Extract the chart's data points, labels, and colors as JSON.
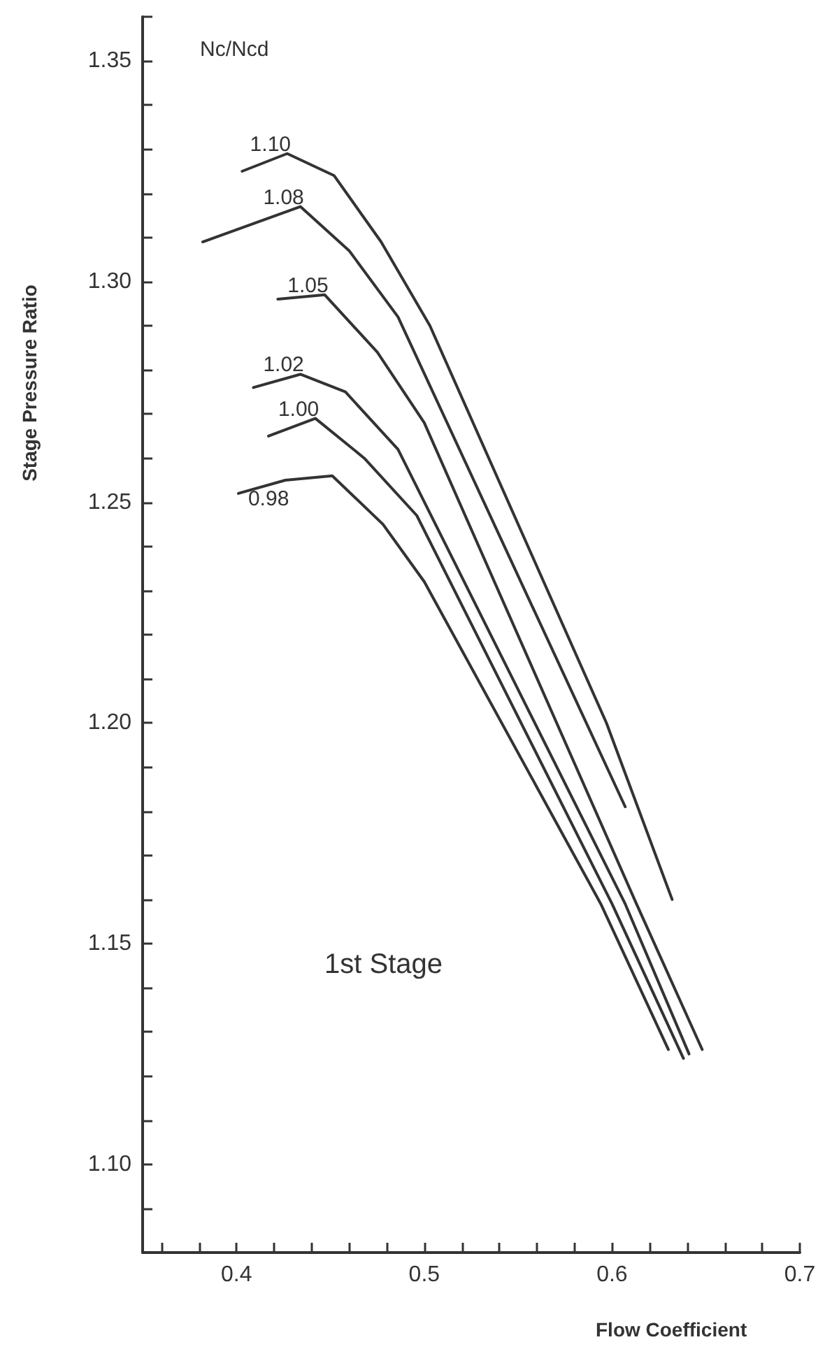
{
  "chart_data": {
    "type": "line",
    "xlabel": "Flow Coefficient",
    "ylabel": "Stage Pressure Ratio",
    "legend_title": "Nc/Ncd",
    "annotations": [
      "1st Stage"
    ],
    "xlim": [
      0.35,
      0.7
    ],
    "ylim": [
      1.08,
      1.36
    ],
    "xticks": [
      {
        "value": 0.36,
        "label": null
      },
      {
        "value": 0.38,
        "label": null
      },
      0.4,
      {
        "value": 0.42,
        "label": null
      },
      {
        "value": 0.44,
        "label": null
      },
      {
        "value": 0.46,
        "label": null
      },
      {
        "value": 0.48,
        "label": null
      },
      0.5,
      {
        "value": 0.52,
        "label": null
      },
      {
        "value": 0.54,
        "label": null
      },
      {
        "value": 0.56,
        "label": null
      },
      {
        "value": 0.58,
        "label": null
      },
      0.6,
      {
        "value": 0.62,
        "label": null
      },
      {
        "value": 0.64,
        "label": null
      },
      {
        "value": 0.66,
        "label": null
      },
      {
        "value": 0.68,
        "label": null
      },
      0.7
    ],
    "yticks": [
      {
        "value": 1.08,
        "label": null
      },
      {
        "value": 1.09,
        "label": null
      },
      {
        "value": 1.1,
        "label": "1.10"
      },
      {
        "value": 1.11,
        "label": null
      },
      {
        "value": 1.12,
        "label": null
      },
      {
        "value": 1.13,
        "label": null
      },
      {
        "value": 1.14,
        "label": null
      },
      {
        "value": 1.15,
        "label": "1.15"
      },
      {
        "value": 1.16,
        "label": null
      },
      {
        "value": 1.17,
        "label": null
      },
      {
        "value": 1.18,
        "label": null
      },
      {
        "value": 1.19,
        "label": null
      },
      {
        "value": 1.2,
        "label": "1.20"
      },
      {
        "value": 1.21,
        "label": null
      },
      {
        "value": 1.22,
        "label": null
      },
      {
        "value": 1.23,
        "label": null
      },
      {
        "value": 1.24,
        "label": null
      },
      {
        "value": 1.25,
        "label": "1.25"
      },
      {
        "value": 1.26,
        "label": null
      },
      {
        "value": 1.27,
        "label": null
      },
      {
        "value": 1.28,
        "label": null
      },
      {
        "value": 1.29,
        "label": null
      },
      {
        "value": 1.3,
        "label": "1.30"
      },
      {
        "value": 1.31,
        "label": null
      },
      {
        "value": 1.32,
        "label": null
      },
      {
        "value": 1.33,
        "label": null
      },
      {
        "value": 1.34,
        "label": null
      },
      {
        "value": 1.35,
        "label": "1.35"
      },
      {
        "value": 1.36,
        "label": null
      }
    ],
    "grid": false,
    "legend": false,
    "marker": "none",
    "line_style": "solid",
    "series": [
      {
        "name": "1.10",
        "color": "#333333",
        "x": [
          0.403,
          0.427,
          0.452,
          0.477,
          0.503,
          0.597,
          0.632
        ],
        "values": [
          1.325,
          1.329,
          1.324,
          1.309,
          1.29,
          1.2,
          1.16
        ]
      },
      {
        "name": "1.08",
        "color": "#333333",
        "x": [
          0.382,
          0.434,
          0.46,
          0.486,
          0.607
        ],
        "values": [
          1.309,
          1.317,
          1.307,
          1.292,
          1.181
        ]
      },
      {
        "name": "1.05",
        "color": "#333333",
        "x": [
          0.422,
          0.447,
          0.475,
          0.5,
          0.613,
          0.648
        ],
        "values": [
          1.296,
          1.297,
          1.284,
          1.268,
          1.159,
          1.126
        ]
      },
      {
        "name": "1.02",
        "color": "#333333",
        "x": [
          0.409,
          0.434,
          0.458,
          0.486,
          0.607,
          0.641
        ],
        "values": [
          1.276,
          1.279,
          1.275,
          1.262,
          1.159,
          1.125
        ]
      },
      {
        "name": "1.00",
        "color": "#333333",
        "x": [
          0.417,
          0.442,
          0.468,
          0.496,
          0.6,
          0.638
        ],
        "values": [
          1.265,
          1.269,
          1.26,
          1.247,
          1.159,
          1.124
        ]
      },
      {
        "name": "0.98",
        "color": "#333333",
        "x": [
          0.401,
          0.426,
          0.451,
          0.478,
          0.5,
          0.594,
          0.63
        ],
        "values": [
          1.252,
          1.255,
          1.256,
          1.245,
          1.232,
          1.159,
          1.126
        ]
      }
    ]
  }
}
